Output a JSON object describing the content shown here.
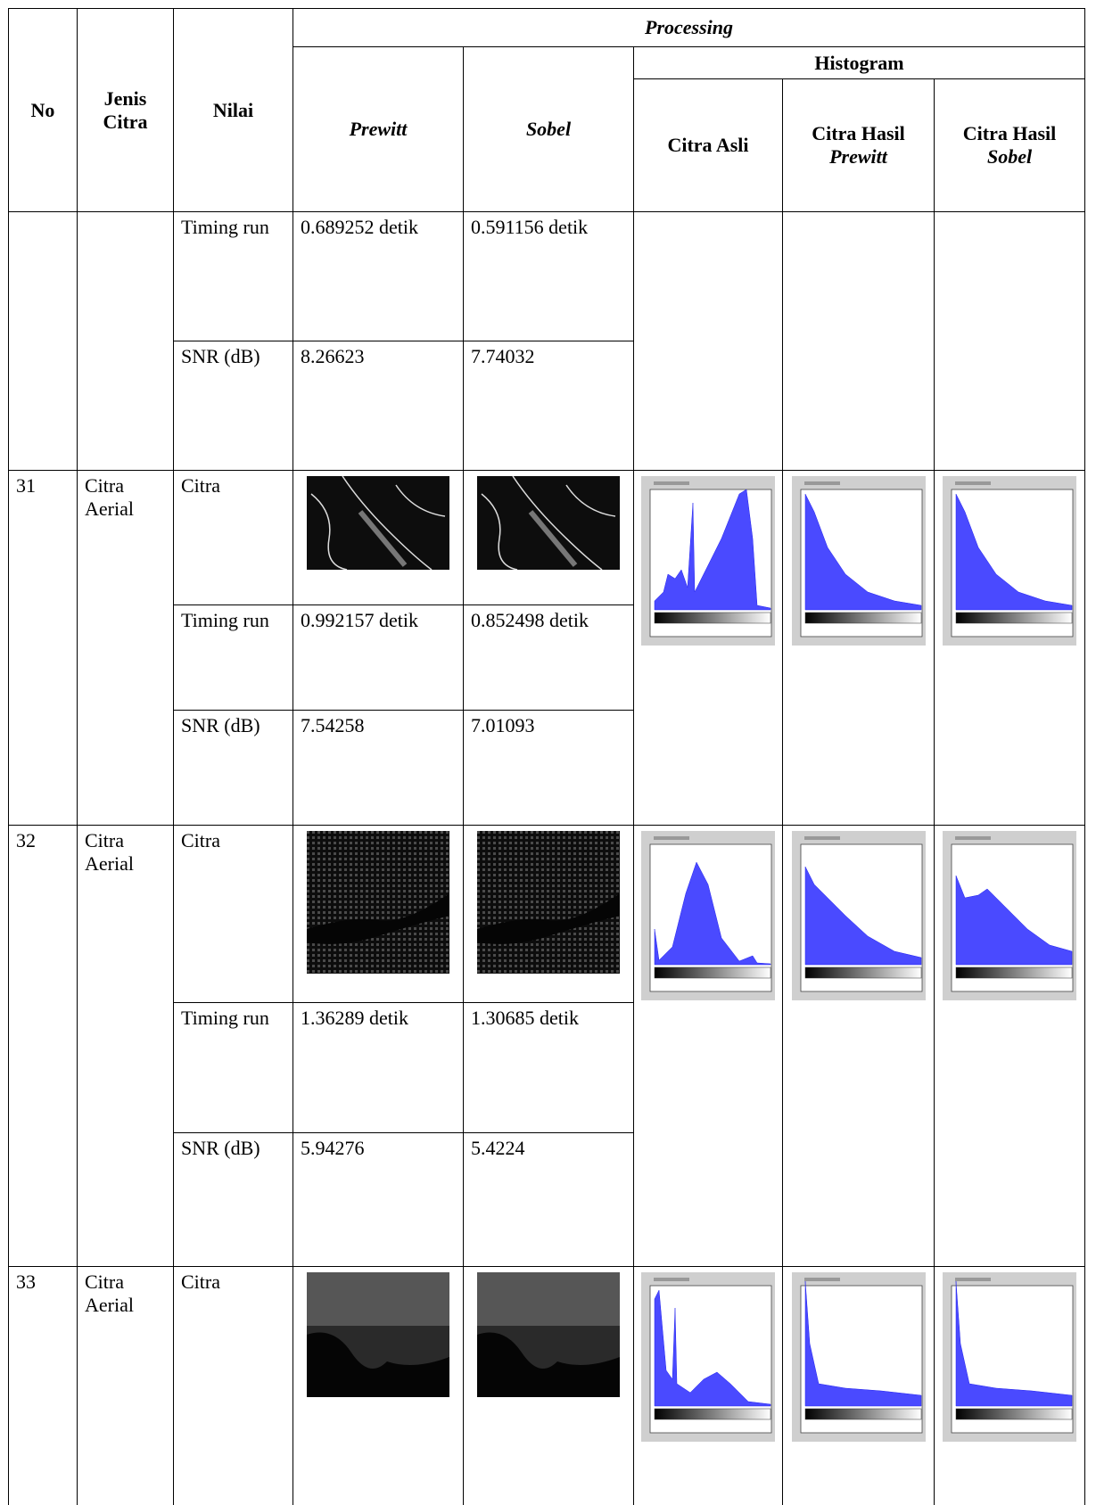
{
  "table": {
    "header": {
      "no": "No",
      "type": "Jenis Citra",
      "value": "Nilai",
      "processing": "Processing",
      "prewitt": "Prewitt",
      "sobel": "Sobel",
      "histogram": "Histogram",
      "original": "Citra Asli",
      "result_prewitt": "Citra Hasil",
      "prewitt_label": "Prewitt",
      "result_sobel": "Citra Hasil",
      "sobel_label": "Sobel"
    },
    "rows": [
      {
        "metrics": [
          {
            "label": "Timing run",
            "prewitt": "0.689252 detik",
            "sobel": "0.591156 detik"
          },
          {
            "label": "SNR (dB)",
            "prewitt": "8.26623",
            "sobel": "7.74032"
          }
        ]
      },
      {
        "no": "31",
        "type": "Citra Aerial",
        "metrics": [
          {
            "label": "Citra"
          },
          {
            "label": "Timing run",
            "prewitt": "0.992157 detik",
            "sobel": "0.852498 detik"
          },
          {
            "label": "SNR (dB)",
            "prewitt": "7.54258",
            "sobel": "7.01093"
          }
        ]
      },
      {
        "no": "32",
        "type": "Citra Aerial",
        "metrics": [
          {
            "label": "Citra"
          },
          {
            "label": "Timing run",
            "prewitt": "1.36289 detik",
            "sobel": "1.30685 detik"
          },
          {
            "label": "SNR (dB)",
            "prewitt": "5.94276",
            "sobel": "5.4224"
          }
        ]
      },
      {
        "no": "33",
        "type": "Citra Aerial",
        "metrics": [
          {
            "label": "Citra"
          }
        ]
      }
    ]
  }
}
